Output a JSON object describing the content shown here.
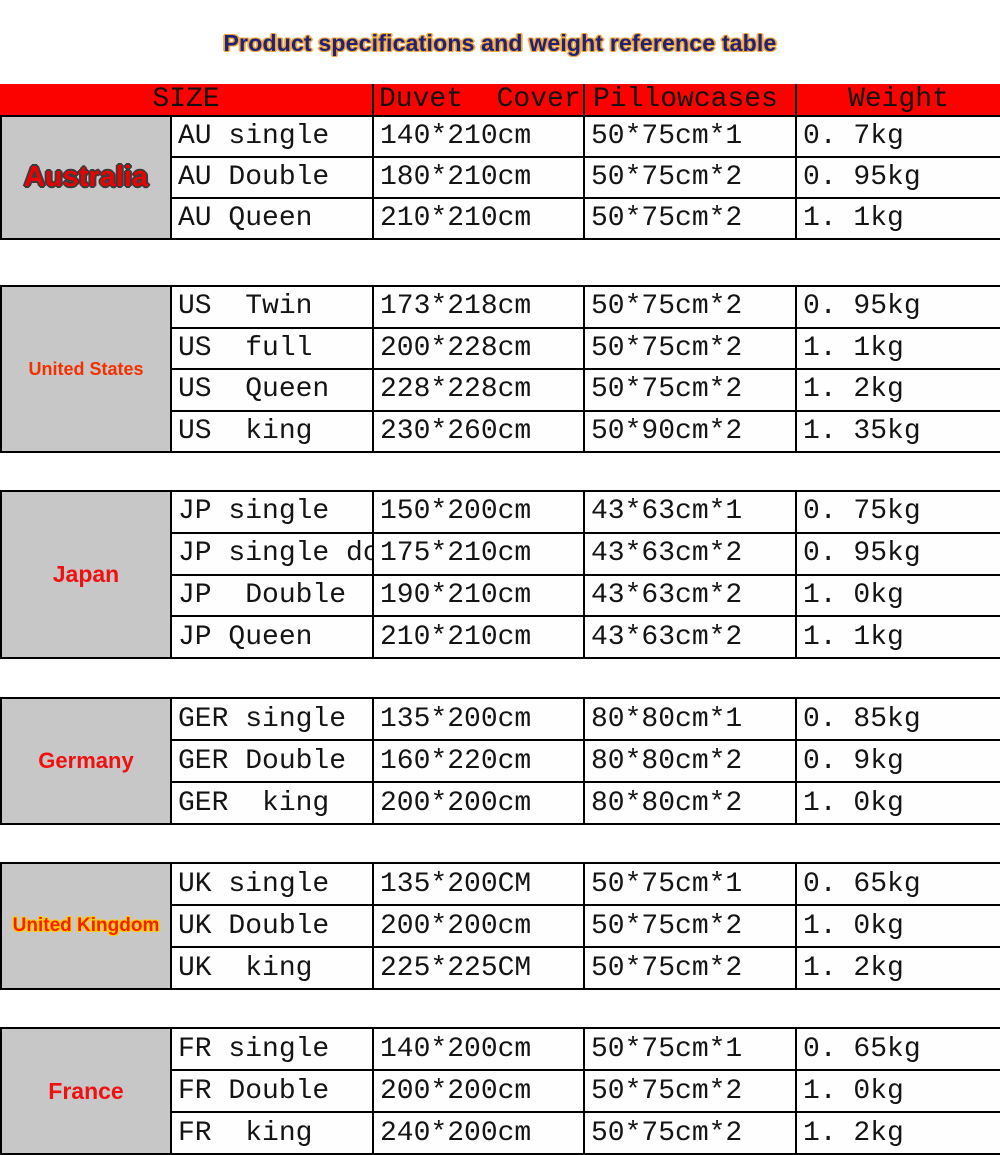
{
  "title": "Product specifications and weight reference table",
  "header": {
    "size": "SIZE",
    "duvet_cover": "Duvet  Cover",
    "pillowcases": "Pillowcases",
    "weight": "Weight"
  },
  "colors": {
    "header_background": "#fb0200",
    "country_cell_background": "#c7c7c7",
    "country_label_red": "#f01010",
    "title_navy": "#21217a",
    "title_outline_orange": "#efa63c",
    "border_black": "#000000"
  },
  "sections": [
    {
      "id": "au",
      "country": "Australia",
      "rows": [
        [
          "AU single",
          "140*210cm",
          "50*75cm*1",
          "0. 7kg"
        ],
        [
          "AU Double",
          "180*210cm",
          "50*75cm*2",
          "0. 95kg"
        ],
        [
          "AU Queen",
          "210*210cm",
          "50*75cm*2",
          "1. 1kg"
        ]
      ]
    },
    {
      "id": "us",
      "country": "United States",
      "rows": [
        [
          "US  Twin",
          "173*218cm",
          "50*75cm*2",
          "0. 95kg"
        ],
        [
          "US  full",
          "200*228cm",
          "50*75cm*2",
          "1. 1kg"
        ],
        [
          "US  Queen",
          "228*228cm",
          "50*75cm*2",
          "1. 2kg"
        ],
        [
          "US  king",
          "230*260cm",
          "50*90cm*2",
          "1. 35kg"
        ]
      ]
    },
    {
      "id": "jp",
      "country": "Japan",
      "rows": [
        [
          "JP single",
          "150*200cm",
          "43*63cm*1",
          "0. 75kg"
        ],
        [
          "JP single do",
          "175*210cm",
          "43*63cm*2",
          "0. 95kg"
        ],
        [
          "JP  Double",
          "190*210cm",
          "43*63cm*2",
          "1. 0kg"
        ],
        [
          "JP Queen",
          "210*210cm",
          "43*63cm*2",
          "1. 1kg"
        ]
      ]
    },
    {
      "id": "ger",
      "country": "Germany",
      "rows": [
        [
          "GER single",
          "135*200cm",
          "80*80cm*1",
          "0. 85kg"
        ],
        [
          "GER Double",
          "160*220cm",
          "80*80cm*2",
          "0. 9kg"
        ],
        [
          "GER  king",
          "200*200cm",
          "80*80cm*2",
          "1. 0kg"
        ]
      ]
    },
    {
      "id": "uk",
      "country": "United Kingdom",
      "rows": [
        [
          "UK single",
          "135*200CM",
          "50*75cm*1",
          "0. 65kg"
        ],
        [
          "UK Double",
          "200*200cm",
          "50*75cm*2",
          "1. 0kg"
        ],
        [
          "UK  king",
          "225*225CM",
          "50*75cm*2",
          "1. 2kg"
        ]
      ]
    },
    {
      "id": "fr",
      "country": "France",
      "rows": [
        [
          "FR single",
          "140*200cm",
          "50*75cm*1",
          "0. 65kg"
        ],
        [
          "FR Double",
          "200*200cm",
          "50*75cm*2",
          "1. 0kg"
        ],
        [
          "FR  king",
          "240*200cm",
          "50*75cm*2",
          "1. 2kg"
        ]
      ]
    }
  ]
}
